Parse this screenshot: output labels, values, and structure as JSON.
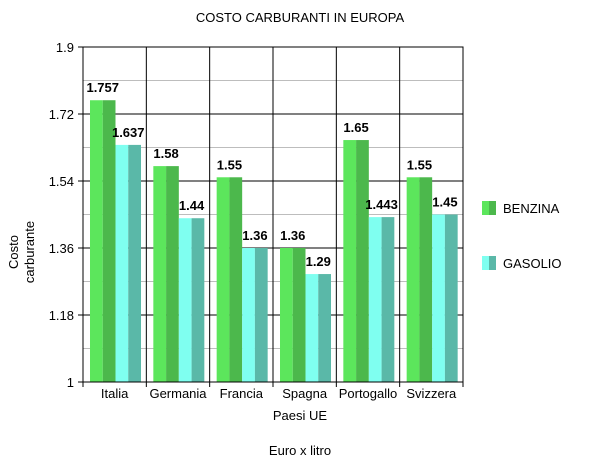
{
  "chart_data": {
    "type": "bar",
    "title": "COSTO CARBURANTI IN EUROPA",
    "xlabel": "Paesi UE",
    "ylabel": [
      "Costo",
      "carburante"
    ],
    "footnote": "Euro x litro",
    "categories": [
      "Italia",
      "Germania",
      "Francia",
      "Spagna",
      "Portogallo",
      "Svizzera"
    ],
    "series": [
      {
        "name": "BENZINA",
        "values": [
          1.757,
          1.58,
          1.55,
          1.36,
          1.65,
          1.55
        ],
        "labels": [
          "1.757",
          "1.58",
          "1.55",
          "1.36",
          "1.65",
          "1.55"
        ],
        "color_light": "#5CE65C",
        "color_dark": "#4CB84C"
      },
      {
        "name": "GASOLIO",
        "values": [
          1.637,
          1.44,
          1.36,
          1.29,
          1.443,
          1.45
        ],
        "labels": [
          "1.637",
          "1.44",
          "1.36",
          "1.29",
          "1.443",
          "1.45"
        ],
        "color_light": "#7FFFF0",
        "color_dark": "#5AB8A8"
      }
    ],
    "ylim": [
      1,
      1.9
    ],
    "yticks": [
      "1",
      "1.18",
      "1.36",
      "1.54",
      "1.72",
      "1.9"
    ],
    "grid": true,
    "legend": "right"
  }
}
